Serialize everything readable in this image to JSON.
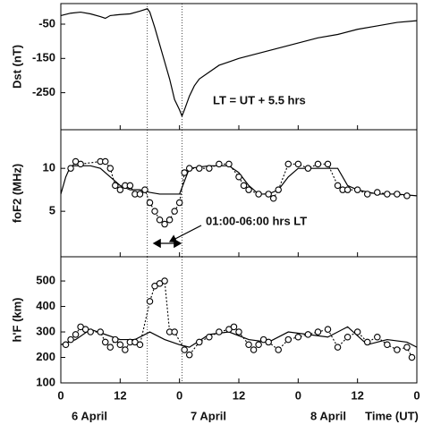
{
  "chart_data": [
    {
      "type": "line",
      "ylabel": "Dst (nT)",
      "annotation": "LT = UT + 5.5 hrs",
      "xlim": [
        0,
        72
      ],
      "ylim": [
        -358,
        10
      ],
      "yticks": [
        -50,
        -150,
        -250
      ],
      "vlines": [
        17.5,
        24.5
      ],
      "series": [
        {
          "color": "#000",
          "style": "solid",
          "x": [
            0,
            2,
            4,
            6,
            8,
            9,
            10,
            12,
            14,
            16,
            17.5,
            18,
            19,
            20,
            21,
            22,
            23,
            24,
            24.5,
            25,
            26,
            27,
            28,
            30,
            32,
            34,
            36,
            40,
            44,
            48,
            52,
            56,
            60,
            64,
            68,
            72
          ],
          "values": [
            -25,
            -18,
            -15,
            -20,
            -28,
            -33,
            -25,
            -22,
            -20,
            -12,
            -5,
            -15,
            -60,
            -110,
            -160,
            -210,
            -270,
            -300,
            -318,
            -300,
            -260,
            -230,
            -210,
            -190,
            -170,
            -160,
            -150,
            -135,
            -120,
            -105,
            -90,
            -80,
            -65,
            -55,
            -45,
            -40
          ]
        }
      ]
    },
    {
      "type": "line",
      "ylabel": "foF2 (MHz)",
      "annotation": "01:00-06:00 hrs LT",
      "xlim": [
        0,
        72
      ],
      "ylim": [
        -0.3,
        14.5
      ],
      "yticks": [
        5,
        10
      ],
      "series": [
        {
          "color": "#000",
          "style": "solid",
          "x": [
            0,
            1,
            2,
            6,
            8,
            10,
            12,
            14,
            16,
            18,
            20,
            24,
            26,
            30,
            34,
            36,
            38,
            40,
            42,
            44,
            46,
            48,
            52,
            56,
            58,
            60,
            64,
            68,
            72
          ],
          "values": [
            7,
            9,
            10.3,
            10.3,
            10,
            9,
            8,
            7.5,
            7.5,
            7.2,
            7,
            7,
            10,
            10.3,
            10.3,
            9.5,
            8,
            7,
            7,
            7.5,
            9,
            10,
            10,
            10,
            8,
            7.5,
            7,
            7,
            6.8
          ]
        },
        {
          "color": "#000",
          "style": "dotted",
          "markers": true,
          "x": [
            2,
            3,
            4,
            8,
            9,
            10,
            11,
            12,
            13,
            14,
            15,
            16,
            17,
            18,
            19,
            20,
            21,
            22,
            23,
            24,
            25,
            26,
            28,
            30,
            32,
            34,
            36,
            37,
            38,
            40,
            42,
            43,
            44,
            46,
            48,
            50,
            52,
            54,
            56,
            57,
            58,
            60,
            62,
            64,
            66,
            68,
            70
          ],
          "values": [
            10,
            10.8,
            10.5,
            10.8,
            10.8,
            10,
            8,
            7.5,
            8,
            8,
            7,
            7,
            7.5,
            6,
            5,
            4,
            3.5,
            4,
            5,
            6,
            9.5,
            10,
            10,
            10,
            10.5,
            10.5,
            9,
            8,
            7.5,
            7,
            7,
            6.5,
            7.5,
            10.5,
            10.5,
            10,
            10.5,
            10.5,
            8,
            7.5,
            7.5,
            7.5,
            7,
            7.2,
            7,
            7,
            6.8
          ]
        }
      ]
    },
    {
      "type": "line",
      "ylabel": "h'F (km)",
      "xlabel": "Time (UT)",
      "dates": [
        "6 April",
        "7 April",
        "8 April"
      ],
      "xlim": [
        0,
        72
      ],
      "ylim": [
        100,
        595
      ],
      "yticks": [
        100,
        200,
        300,
        400,
        500
      ],
      "xticks": [
        {
          "value": 0,
          "label": "0"
        },
        {
          "value": 12,
          "label": "12"
        },
        {
          "value": 24,
          "label": "0"
        },
        {
          "value": 36,
          "label": "12"
        },
        {
          "value": 48,
          "label": "0"
        },
        {
          "value": 60,
          "label": "12"
        },
        {
          "value": 72,
          "label": "0"
        }
      ],
      "series": [
        {
          "color": "#000",
          "style": "solid",
          "x": [
            0,
            3,
            6,
            9,
            12,
            15,
            18,
            21,
            24,
            26,
            30,
            34,
            38,
            42,
            46,
            50,
            54,
            58,
            62,
            66,
            70,
            72
          ],
          "values": [
            250,
            270,
            310,
            290,
            270,
            270,
            300,
            270,
            250,
            240,
            290,
            300,
            270,
            260,
            300,
            290,
            280,
            320,
            250,
            270,
            260,
            240
          ]
        },
        {
          "color": "#000",
          "style": "dotted",
          "markers": true,
          "x": [
            1,
            2,
            3,
            4,
            5,
            6,
            8,
            9,
            10,
            11,
            12,
            13,
            14,
            15,
            16,
            18,
            19,
            20,
            21,
            22,
            23,
            25,
            26,
            28,
            30,
            32,
            34,
            35,
            36,
            38,
            39,
            40,
            41,
            42,
            44,
            46,
            48,
            50,
            52,
            54,
            56,
            58,
            60,
            62,
            64,
            66,
            68,
            70,
            71
          ],
          "values": [
            250,
            270,
            290,
            320,
            310,
            300,
            300,
            260,
            240,
            270,
            250,
            230,
            260,
            260,
            250,
            420,
            480,
            490,
            500,
            300,
            300,
            230,
            210,
            260,
            280,
            300,
            310,
            320,
            300,
            250,
            230,
            250,
            270,
            260,
            230,
            270,
            280,
            290,
            300,
            310,
            240,
            280,
            300,
            260,
            280,
            250,
            230,
            240,
            200
          ]
        }
      ]
    }
  ]
}
